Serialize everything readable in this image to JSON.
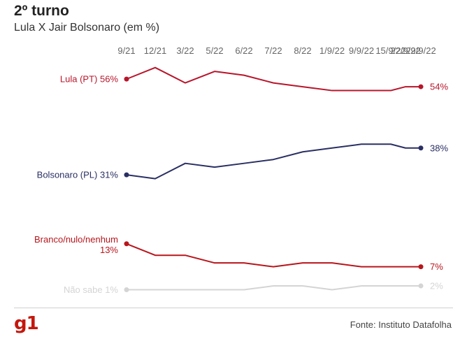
{
  "title": "2º turno",
  "subtitle": "Lula X Jair Bolsonaro (em %)",
  "source": "Fonte: Instituto Datafolha",
  "logo": "g1",
  "chart_data": {
    "type": "line",
    "x": [
      "9/21",
      "12/21",
      "3/22",
      "5/22",
      "6/22",
      "7/22",
      "8/22",
      "1/9/22",
      "9/9/22",
      "15/9/22",
      "22/9/22",
      "29/9/22"
    ],
    "series": [
      {
        "name": "Lula (PT)",
        "label_start": "Lula (PT) 56%",
        "label_end": "54%",
        "color": "#b8162b",
        "values": [
          56,
          59,
          55,
          58,
          57,
          55,
          54,
          53,
          53,
          53,
          54,
          54
        ]
      },
      {
        "name": "Bolsonaro (PL)",
        "label_start": "Bolsonaro (PL) 31%",
        "label_end": "38%",
        "color": "#2a2f63",
        "values": [
          31,
          30,
          34,
          33,
          34,
          35,
          37,
          38,
          39,
          39,
          38,
          38
        ]
      },
      {
        "name": "Branco/nulo/nenhum",
        "label_start": "Branco/nulo/nenhum 13%",
        "label_end": "7%",
        "color": "#b8161c",
        "values": [
          13,
          10,
          10,
          8,
          8,
          7,
          8,
          8,
          7,
          7,
          7,
          7
        ]
      },
      {
        "name": "Não sabe",
        "label_start": "Não sabe 1%",
        "label_end": "2%",
        "color": "#d4d4d4",
        "values": [
          1,
          1,
          1,
          1,
          1,
          2,
          2,
          1,
          2,
          2,
          2,
          2
        ]
      }
    ],
    "ylim": [
      0,
      60
    ],
    "grid": false,
    "legend": "inline labels at line ends"
  }
}
